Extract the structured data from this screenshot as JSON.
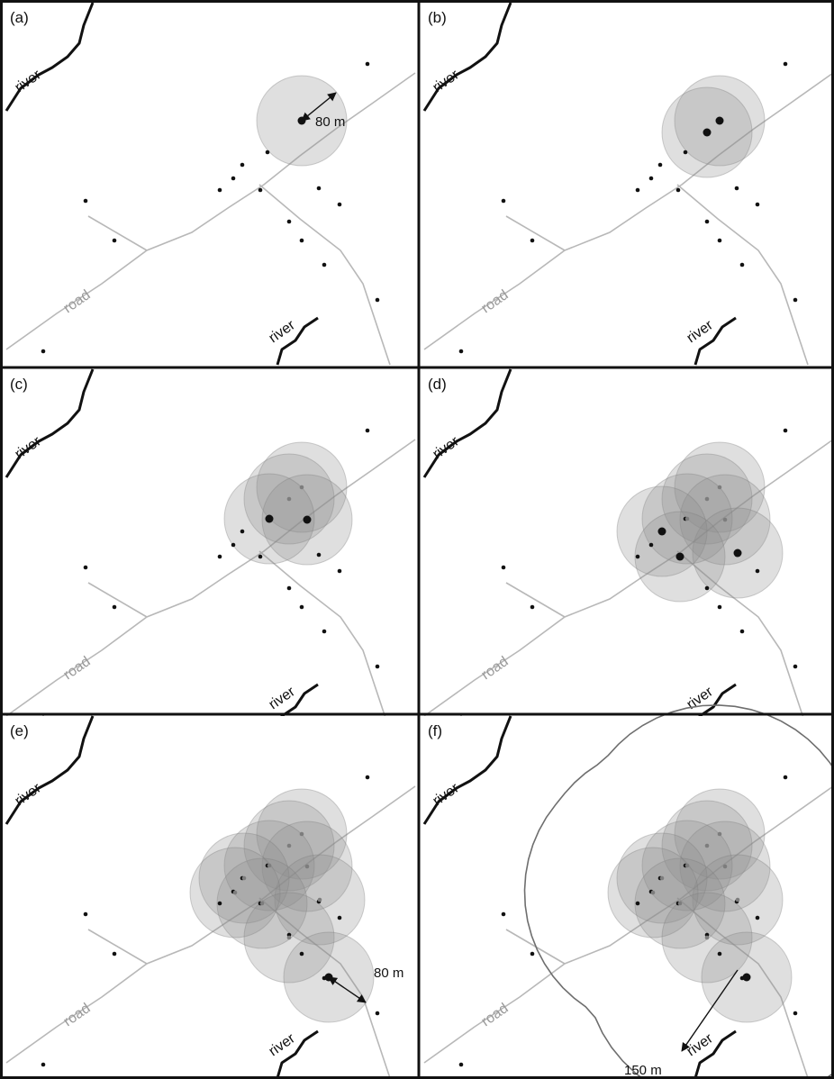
{
  "figure": {
    "panels": [
      {
        "id": "a",
        "label": "(a)",
        "buffers": 1,
        "distance_label": "80 m"
      },
      {
        "id": "b",
        "label": "(b)",
        "buffers": 2,
        "distance_label": ""
      },
      {
        "id": "c",
        "label": "(c)",
        "buffers": 4,
        "distance_label": ""
      },
      {
        "id": "d",
        "label": "(d)",
        "buffers": 7,
        "distance_label": ""
      },
      {
        "id": "e",
        "label": "(e)",
        "buffers": 10,
        "distance_label": "80 m"
      },
      {
        "id": "f",
        "label": "(f)",
        "buffers": 10,
        "distance_label": "150 m"
      }
    ],
    "labels": {
      "river": "river",
      "road": "road"
    },
    "colors": {
      "buffer_fill": "#8c8c8c",
      "buffer_stroke": "#7a7a7a",
      "road": "#b8b8b8",
      "river": "#111111",
      "point": "#111111",
      "outline": "#6e6e6e"
    }
  }
}
